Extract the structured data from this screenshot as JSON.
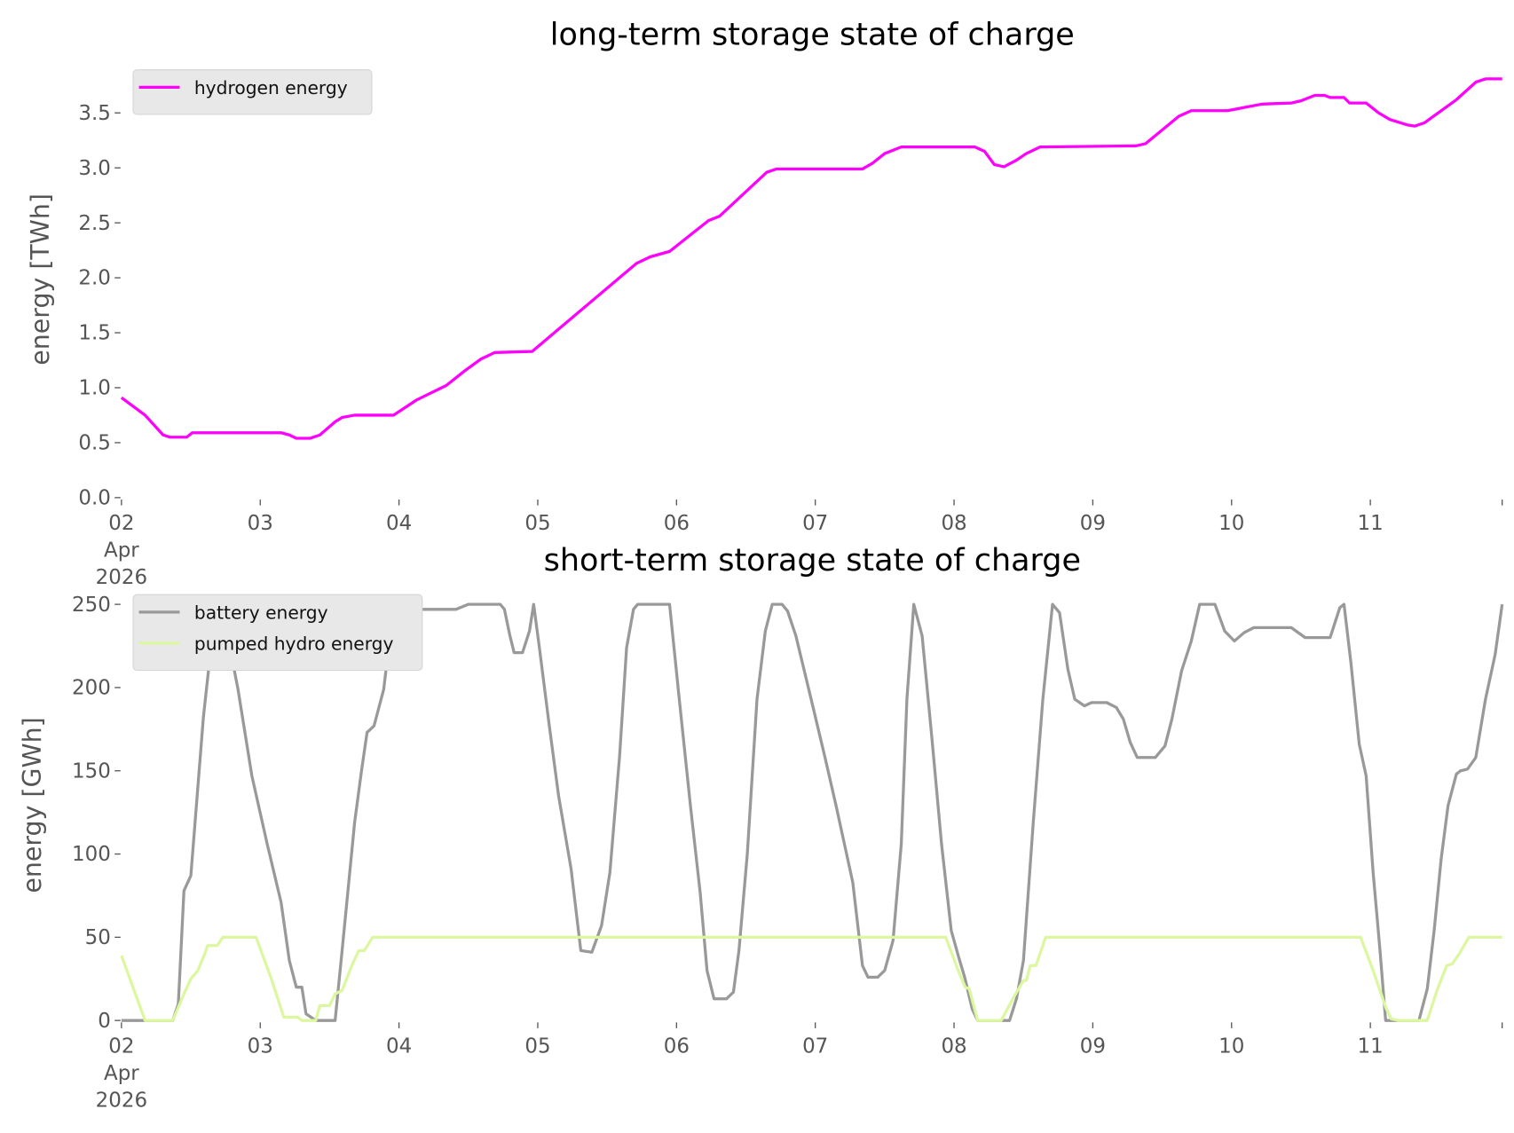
{
  "chart_data": [
    {
      "type": "line",
      "title": "long-term storage state of charge",
      "xlabel": "",
      "ylabel": "energy [TWh]",
      "x_unit": "days since 2026-04-02 00:00",
      "xlim": [
        0,
        9.95
      ],
      "ylim": [
        0,
        3.98
      ],
      "yticks": [
        0,
        0.5,
        1.0,
        1.5,
        2.0,
        2.5,
        3.0,
        3.5
      ],
      "ytick_labels": [
        "0.0",
        "0.5",
        "1.0",
        "1.5",
        "2.0",
        "2.5",
        "3.0",
        "3.5"
      ],
      "xticks": [
        0,
        1,
        2,
        3,
        4,
        5,
        6,
        7,
        8,
        9,
        9.95
      ],
      "xtick_labels": [
        [
          "02",
          "Apr",
          "2026"
        ],
        [
          "03"
        ],
        [
          "04"
        ],
        [
          "05"
        ],
        [
          "06"
        ],
        [
          "07"
        ],
        [
          "08"
        ],
        [
          "09"
        ],
        [
          "10"
        ],
        [
          "11"
        ],
        [
          ""
        ]
      ],
      "grid": false,
      "legend_position": "top-left",
      "series": [
        {
          "name": "hydrogen energy",
          "color": "#ff00ff",
          "points": [
            [
              0,
              0.91
            ],
            [
              0.17,
              0.75
            ],
            [
              0.3,
              0.57
            ],
            [
              0.35,
              0.55
            ],
            [
              0.47,
              0.55
            ],
            [
              0.51,
              0.59
            ],
            [
              1.15,
              0.59
            ],
            [
              1.21,
              0.57
            ],
            [
              1.26,
              0.54
            ],
            [
              1.36,
              0.54
            ],
            [
              1.43,
              0.57
            ],
            [
              1.54,
              0.69
            ],
            [
              1.59,
              0.73
            ],
            [
              1.68,
              0.75
            ],
            [
              1.96,
              0.75
            ],
            [
              2.13,
              0.89
            ],
            [
              2.34,
              1.02
            ],
            [
              2.48,
              1.16
            ],
            [
              2.59,
              1.26
            ],
            [
              2.69,
              1.32
            ],
            [
              2.96,
              1.33
            ],
            [
              3.71,
              2.13
            ],
            [
              3.81,
              2.19
            ],
            [
              3.95,
              2.24
            ],
            [
              4.23,
              2.52
            ],
            [
              4.31,
              2.56
            ],
            [
              4.65,
              2.96
            ],
            [
              4.72,
              2.99
            ],
            [
              5.34,
              2.99
            ],
            [
              5.41,
              3.04
            ],
            [
              5.5,
              3.13
            ],
            [
              5.62,
              3.19
            ],
            [
              6.15,
              3.19
            ],
            [
              6.22,
              3.15
            ],
            [
              6.29,
              3.03
            ],
            [
              6.36,
              3.01
            ],
            [
              6.45,
              3.07
            ],
            [
              6.52,
              3.13
            ],
            [
              6.62,
              3.19
            ],
            [
              7.31,
              3.2
            ],
            [
              7.38,
              3.22
            ],
            [
              7.62,
              3.47
            ],
            [
              7.71,
              3.52
            ],
            [
              7.97,
              3.52
            ],
            [
              8.22,
              3.58
            ],
            [
              8.43,
              3.59
            ],
            [
              8.5,
              3.61
            ],
            [
              8.6,
              3.66
            ],
            [
              8.67,
              3.66
            ],
            [
              8.71,
              3.64
            ],
            [
              8.81,
              3.64
            ],
            [
              8.85,
              3.59
            ],
            [
              8.97,
              3.59
            ],
            [
              9.06,
              3.5
            ],
            [
              9.14,
              3.44
            ],
            [
              9.27,
              3.39
            ],
            [
              9.32,
              3.38
            ],
            [
              9.39,
              3.41
            ],
            [
              9.62,
              3.62
            ],
            [
              9.76,
              3.78
            ],
            [
              9.83,
              3.81
            ],
            [
              9.95,
              3.81
            ]
          ]
        }
      ]
    },
    {
      "type": "line",
      "title": "short-term storage state of charge",
      "xlabel": "",
      "ylabel": "energy [GWh]",
      "x_unit": "days since 2026-04-02 00:00",
      "xlim": [
        0,
        9.95
      ],
      "ylim": [
        0,
        257
      ],
      "yticks": [
        0,
        50,
        100,
        150,
        200,
        250
      ],
      "ytick_labels": [
        "0",
        "50",
        "100",
        "150",
        "200",
        "250"
      ],
      "xticks": [
        0,
        1,
        2,
        3,
        4,
        5,
        6,
        7,
        8,
        9,
        9.95
      ],
      "xtick_labels": [
        [
          "02",
          "Apr",
          "2026"
        ],
        [
          "03"
        ],
        [
          "04"
        ],
        [
          "05"
        ],
        [
          "06"
        ],
        [
          "07"
        ],
        [
          "08"
        ],
        [
          "09"
        ],
        [
          "10"
        ],
        [
          "11"
        ],
        [
          ""
        ]
      ],
      "grid": false,
      "legend_position": "top-left",
      "series": [
        {
          "name": "battery energy",
          "color": "#999999",
          "points": [
            [
              0,
              0
            ],
            [
              0.37,
              0
            ],
            [
              0.41,
              10
            ],
            [
              0.45,
              78
            ],
            [
              0.5,
              87
            ],
            [
              0.59,
              182
            ],
            [
              0.65,
              228
            ],
            [
              0.7,
              249
            ],
            [
              0.75,
              237
            ],
            [
              0.84,
              199
            ],
            [
              0.94,
              147
            ],
            [
              1.05,
              106
            ],
            [
              1.15,
              71
            ],
            [
              1.21,
              36
            ],
            [
              1.26,
              20
            ],
            [
              1.3,
              20
            ],
            [
              1.33,
              4
            ],
            [
              1.4,
              0
            ],
            [
              1.54,
              0
            ],
            [
              1.59,
              42
            ],
            [
              1.68,
              119
            ],
            [
              1.73,
              150
            ],
            [
              1.77,
              173
            ],
            [
              1.82,
              177
            ],
            [
              1.89,
              199
            ],
            [
              1.96,
              249
            ],
            [
              2.01,
              247
            ],
            [
              2.41,
              247
            ],
            [
              2.5,
              250
            ],
            [
              2.73,
              250
            ],
            [
              2.76,
              247
            ],
            [
              2.8,
              231
            ],
            [
              2.83,
              221
            ],
            [
              2.89,
              221
            ],
            [
              2.94,
              234
            ],
            [
              2.97,
              250
            ],
            [
              3.01,
              225
            ],
            [
              3.08,
              179
            ],
            [
              3.15,
              135
            ],
            [
              3.24,
              91
            ],
            [
              3.31,
              42
            ],
            [
              3.39,
              41
            ],
            [
              3.46,
              57
            ],
            [
              3.52,
              89
            ],
            [
              3.59,
              159
            ],
            [
              3.64,
              224
            ],
            [
              3.69,
              247
            ],
            [
              3.72,
              250
            ],
            [
              3.95,
              250
            ],
            [
              4.02,
              193
            ],
            [
              4.1,
              129
            ],
            [
              4.17,
              77
            ],
            [
              4.22,
              30
            ],
            [
              4.27,
              13
            ],
            [
              4.36,
              13
            ],
            [
              4.41,
              17
            ],
            [
              4.45,
              42
            ],
            [
              4.51,
              100
            ],
            [
              4.58,
              193
            ],
            [
              4.64,
              234
            ],
            [
              4.69,
              250
            ],
            [
              4.76,
              250
            ],
            [
              4.8,
              246
            ],
            [
              4.86,
              231
            ],
            [
              4.97,
              193
            ],
            [
              5.07,
              158
            ],
            [
              5.15,
              129
            ],
            [
              5.21,
              106
            ],
            [
              5.27,
              83
            ],
            [
              5.34,
              33
            ],
            [
              5.38,
              26
            ],
            [
              5.45,
              26
            ],
            [
              5.5,
              30
            ],
            [
              5.56,
              48
            ],
            [
              5.62,
              106
            ],
            [
              5.66,
              193
            ],
            [
              5.71,
              250
            ],
            [
              5.77,
              231
            ],
            [
              5.84,
              170
            ],
            [
              5.91,
              106
            ],
            [
              5.98,
              54
            ],
            [
              6.03,
              39
            ],
            [
              6.08,
              25
            ],
            [
              6.13,
              7
            ],
            [
              6.17,
              0
            ],
            [
              6.4,
              0
            ],
            [
              6.45,
              13
            ],
            [
              6.5,
              36
            ],
            [
              6.57,
              118
            ],
            [
              6.64,
              193
            ],
            [
              6.71,
              250
            ],
            [
              6.76,
              245
            ],
            [
              6.82,
              211
            ],
            [
              6.87,
              193
            ],
            [
              6.94,
              189
            ],
            [
              6.99,
              191
            ],
            [
              7.1,
              191
            ],
            [
              7.17,
              188
            ],
            [
              7.22,
              181
            ],
            [
              7.27,
              167
            ],
            [
              7.32,
              158
            ],
            [
              7.45,
              158
            ],
            [
              7.52,
              165
            ],
            [
              7.57,
              181
            ],
            [
              7.64,
              210
            ],
            [
              7.71,
              228
            ],
            [
              7.77,
              250
            ],
            [
              7.88,
              250
            ],
            [
              7.95,
              234
            ],
            [
              8.02,
              228
            ],
            [
              8.09,
              233
            ],
            [
              8.16,
              236
            ],
            [
              8.43,
              236
            ],
            [
              8.53,
              230
            ],
            [
              8.71,
              230
            ],
            [
              8.78,
              248
            ],
            [
              8.81,
              250
            ],
            [
              8.86,
              215
            ],
            [
              8.92,
              166
            ],
            [
              8.97,
              147
            ],
            [
              9.02,
              89
            ],
            [
              9.07,
              42
            ],
            [
              9.11,
              0
            ],
            [
              9.35,
              0
            ],
            [
              9.41,
              19
            ],
            [
              9.46,
              54
            ],
            [
              9.51,
              97
            ],
            [
              9.56,
              129
            ],
            [
              9.62,
              148
            ],
            [
              9.65,
              150
            ],
            [
              9.7,
              151
            ],
            [
              9.76,
              158
            ],
            [
              9.83,
              193
            ],
            [
              9.9,
              220
            ],
            [
              9.95,
              250
            ]
          ]
        },
        {
          "name": "pumped hydro energy",
          "color": "#dcf7a0",
          "points": [
            [
              0,
              39
            ],
            [
              0.17,
              0
            ],
            [
              0.37,
              0
            ],
            [
              0.45,
              16
            ],
            [
              0.5,
              25
            ],
            [
              0.55,
              30
            ],
            [
              0.6,
              40
            ],
            [
              0.62,
              45
            ],
            [
              0.69,
              45
            ],
            [
              0.73,
              50
            ],
            [
              0.97,
              50
            ],
            [
              1.08,
              25
            ],
            [
              1.17,
              2
            ],
            [
              1.27,
              2
            ],
            [
              1.3,
              0
            ],
            [
              1.4,
              0
            ],
            [
              1.43,
              9
            ],
            [
              1.5,
              9
            ],
            [
              1.54,
              16
            ],
            [
              1.59,
              18
            ],
            [
              1.66,
              33
            ],
            [
              1.71,
              42
            ],
            [
              1.75,
              42
            ],
            [
              1.81,
              50
            ],
            [
              5.94,
              50
            ],
            [
              6.03,
              30
            ],
            [
              6.08,
              20
            ],
            [
              6.11,
              19
            ],
            [
              6.17,
              0
            ],
            [
              6.34,
              0
            ],
            [
              6.43,
              14
            ],
            [
              6.5,
              24
            ],
            [
              6.52,
              24
            ],
            [
              6.55,
              33
            ],
            [
              6.59,
              33
            ],
            [
              6.66,
              50
            ],
            [
              8.93,
              50
            ],
            [
              9.02,
              30
            ],
            [
              9.11,
              8
            ],
            [
              9.15,
              1
            ],
            [
              9.2,
              0
            ],
            [
              9.41,
              0
            ],
            [
              9.48,
              18
            ],
            [
              9.55,
              33
            ],
            [
              9.59,
              34
            ],
            [
              9.64,
              40
            ],
            [
              9.71,
              50
            ],
            [
              9.95,
              50
            ]
          ]
        }
      ]
    }
  ]
}
